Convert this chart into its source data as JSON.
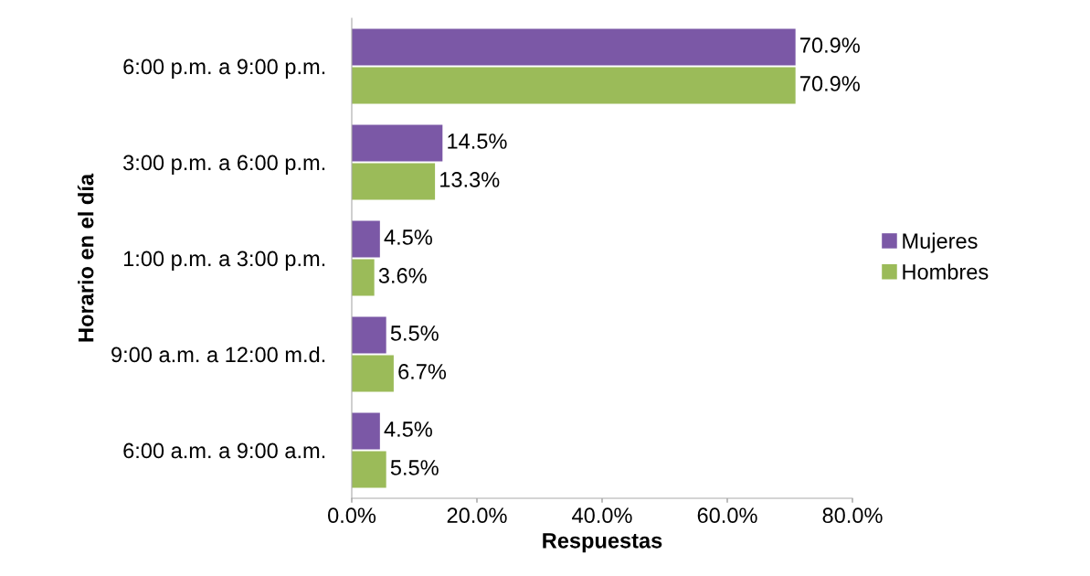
{
  "chart_data": {
    "type": "bar",
    "orientation": "horizontal",
    "xlabel": "Respuestas",
    "ylabel": "Horario en el día",
    "categories": [
      "6:00 p.m. a 9:00 p.m.",
      "3:00 p.m. a 6:00 p.m.",
      "1:00 p.m. a 3:00 p.m.",
      "9:00 a.m. a 12:00 m.d.",
      "6:00 a.m. a 9:00 a.m."
    ],
    "series": [
      {
        "name": "Mujeres",
        "color": "#7b58a6",
        "values": [
          70.9,
          14.5,
          4.5,
          5.5,
          4.5
        ],
        "value_labels": [
          "70.9%",
          "14.5%",
          "4.5%",
          "5.5%",
          "4.5%"
        ]
      },
      {
        "name": "Hombres",
        "color": "#9bbb59",
        "values": [
          70.9,
          13.3,
          3.6,
          6.7,
          5.5
        ],
        "value_labels": [
          "70.9%",
          "13.3%",
          "3.6%",
          "6.7%",
          "5.5%"
        ]
      }
    ],
    "xlim": [
      0,
      80
    ],
    "xticks": [
      {
        "value": 0,
        "label": "0.0%"
      },
      {
        "value": 20,
        "label": "20.0%"
      },
      {
        "value": 40,
        "label": "40.0%"
      },
      {
        "value": 60,
        "label": "60.0%"
      },
      {
        "value": 80,
        "label": "80.0%"
      }
    ],
    "grid": false,
    "legend": "right"
  }
}
